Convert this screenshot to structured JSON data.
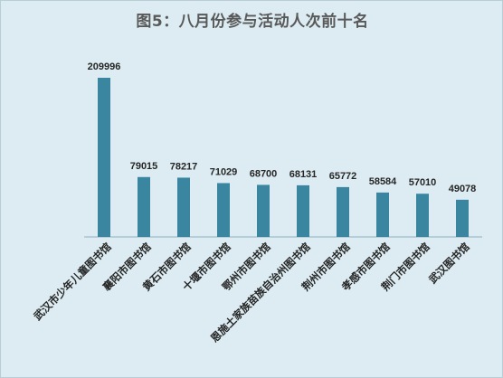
{
  "chart_data": {
    "type": "bar",
    "title": "图5：八月份参与活动人次前十名",
    "categories": [
      "武汉市少年儿童图书馆",
      "襄阳市图书馆",
      "黄石市图书馆",
      "十堰市图书馆",
      "鄂州市图书馆",
      "恩施土家族苗族自治州图书馆",
      "荆州市图书馆",
      "孝感市图书馆",
      "荆门市图书馆",
      "武汉图书馆"
    ],
    "values": [
      209996,
      79015,
      78217,
      71029,
      68700,
      68131,
      65772,
      58584,
      57010,
      49078
    ],
    "value_labels": [
      "209996",
      "79015",
      "78217",
      "71029",
      "68700",
      "68131",
      "65772",
      "58584",
      "57010",
      "49078"
    ],
    "xlabel": "",
    "ylabel": "",
    "ylim": [
      0,
      209996
    ],
    "grid": false,
    "legend": "none",
    "colors": {
      "bar": "#3a86a0",
      "background": "#dcecf2",
      "axis": "#8fb0bc"
    }
  }
}
